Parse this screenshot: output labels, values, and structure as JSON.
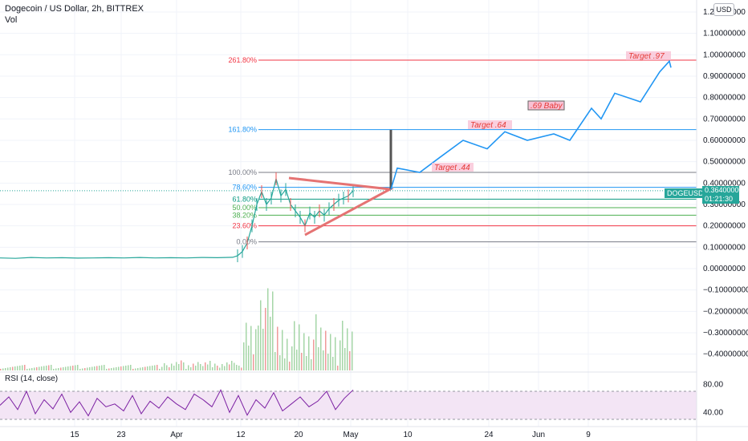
{
  "header": {
    "title": "Dogecoin / US Dollar, 2h, BITTREX",
    "vol_label": "Vol"
  },
  "currency_button": "USD",
  "rsi_label": "RSI (14, close)",
  "price_tag": {
    "symbol": "DOGEUSD",
    "price": "0.36400000",
    "countdown": "01:21:30"
  },
  "colors": {
    "up": "#26a69a",
    "down": "#ef5350",
    "projection": "#2196f3",
    "triangle": "#e57373",
    "rsi": "#7b1fa2",
    "rsi_band": "#f3e5f5"
  },
  "chart_data": [
    {
      "type": "line",
      "title": "Dogecoin / US Dollar, 2h, BITTREX",
      "y_axis_labels": [
        "1.20000000",
        "1.10000000",
        "1.00000000",
        "0.90000000",
        "0.80000000",
        "0.70000000",
        "0.60000000",
        "0.50000000",
        "0.40000000",
        "0.30000000",
        "0.20000000",
        "0.10000000",
        "0.00000000",
        "−0.10000000",
        "−0.20000000",
        "−0.30000000",
        "−0.40000000"
      ],
      "ylim": [
        -0.43,
        1.22
      ],
      "x_tick_labels": [
        "15",
        "23",
        "Apr",
        "12",
        "20",
        "May",
        "10",
        "24",
        "Jun",
        "9"
      ],
      "fib_levels": [
        {
          "label": "0.00%",
          "price": 0.125,
          "color": "#787b86"
        },
        {
          "label": "23.60%",
          "price": 0.2,
          "color": "#f23645"
        },
        {
          "label": "38.20%",
          "price": 0.25,
          "color": "#4caf50"
        },
        {
          "label": "50.00%",
          "price": 0.285,
          "color": "#4caf50"
        },
        {
          "label": "61.80%",
          "price": 0.325,
          "color": "#089981"
        },
        {
          "label": "78.60%",
          "price": 0.38,
          "color": "#2196f3"
        },
        {
          "label": "100.00%",
          "price": 0.45,
          "color": "#787b86"
        },
        {
          "label": "161.80%",
          "price": 0.65,
          "color": "#2196f3"
        },
        {
          "label": "261.80%",
          "price": 0.975,
          "color": "#f23645"
        }
      ],
      "annotations": [
        "Target .44",
        "Target .64",
        ".69 Baby",
        "Target .97"
      ],
      "projection_path": [
        0.37,
        0.47,
        0.45,
        0.52,
        0.6,
        0.56,
        0.64,
        0.6,
        0.63,
        0.6,
        0.75,
        0.7,
        0.82,
        0.78,
        0.92,
        0.97,
        0.94
      ],
      "price_series": [
        0.05,
        0.048,
        0.052,
        0.05,
        0.051,
        0.049,
        0.05,
        0.051,
        0.05,
        0.052,
        0.05,
        0.051,
        0.05,
        0.052,
        0.051,
        0.053,
        0.06,
        0.08,
        0.12,
        0.2,
        0.3,
        0.36,
        0.3,
        0.33,
        0.42,
        0.34,
        0.37,
        0.3,
        0.27,
        0.24,
        0.2,
        0.26,
        0.24,
        0.27,
        0.25,
        0.28,
        0.3,
        0.32,
        0.33,
        0.34,
        0.364
      ],
      "grid": true
    },
    {
      "type": "line",
      "title": "RSI (14, close)",
      "y_axis_labels": [
        "80.00",
        "40.00"
      ],
      "ylim": [
        20,
        90
      ],
      "band": [
        30,
        70
      ],
      "values": [
        50,
        62,
        44,
        70,
        38,
        58,
        45,
        66,
        40,
        55,
        35,
        60,
        48,
        52,
        42,
        64,
        38,
        56,
        46,
        62,
        52,
        44,
        66,
        58,
        48,
        72,
        40,
        64,
        36,
        58,
        46,
        68,
        42,
        52,
        62,
        48,
        56,
        70,
        44,
        60,
        72
      ]
    }
  ]
}
